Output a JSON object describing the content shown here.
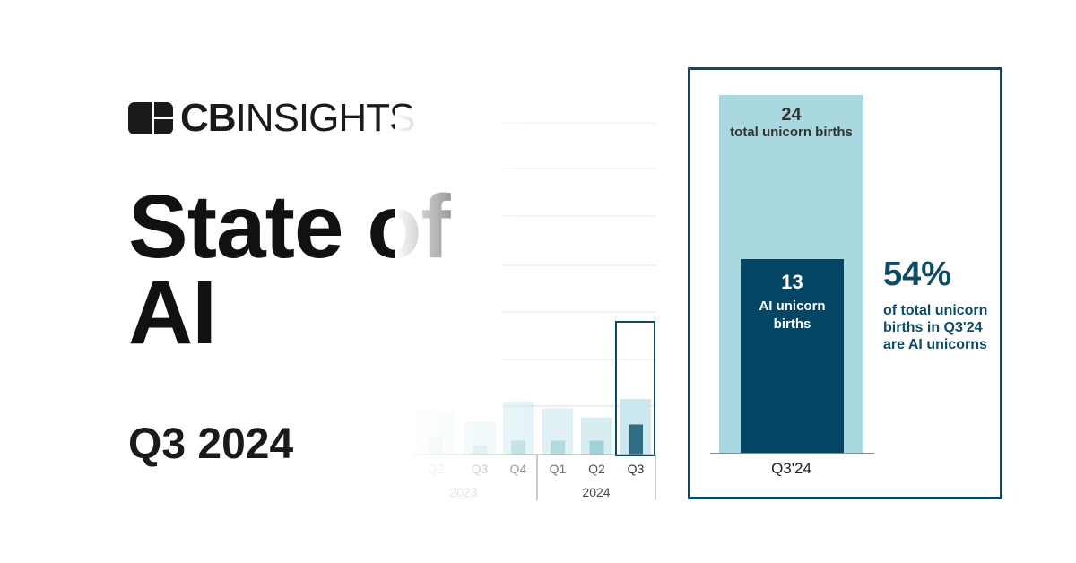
{
  "brand": {
    "logo_text_bold": "CB",
    "logo_text": "INSIGHTS"
  },
  "title": "State of AI",
  "title_line1": "State of",
  "title_line2": "AI",
  "subtitle": "Q3 2024",
  "colors": {
    "total": "#a9d8e0",
    "ai": "#034563",
    "accent": "#0d4a66"
  },
  "chart_data": [
    {
      "type": "bar",
      "categories": [
        "Q3'24"
      ],
      "series": [
        {
          "name": "total unicorn births",
          "values": [
            24
          ]
        },
        {
          "name": "AI unicorn births",
          "values": [
            13
          ]
        }
      ],
      "labels": {
        "total_value": "24",
        "total_label": "total unicorn births",
        "ai_value": "13",
        "ai_label": "AI unicorn births"
      },
      "annotation": {
        "value": "54%",
        "text": "of total unicorn births in Q3'24 are AI unicorns"
      }
    },
    {
      "type": "bar",
      "categories": [
        "Q2",
        "Q3",
        "Q4",
        "Q1",
        "Q2",
        "Q3"
      ],
      "groups": [
        {
          "label": "2023",
          "span": 3
        },
        {
          "label": "2024",
          "span": 3
        }
      ],
      "series": [
        {
          "values": [
            19,
            14,
            23,
            20,
            16,
            24
          ]
        },
        {
          "values": [
            7,
            4,
            6,
            6,
            6,
            13
          ]
        }
      ],
      "highlight": "Q3 2024"
    }
  ]
}
